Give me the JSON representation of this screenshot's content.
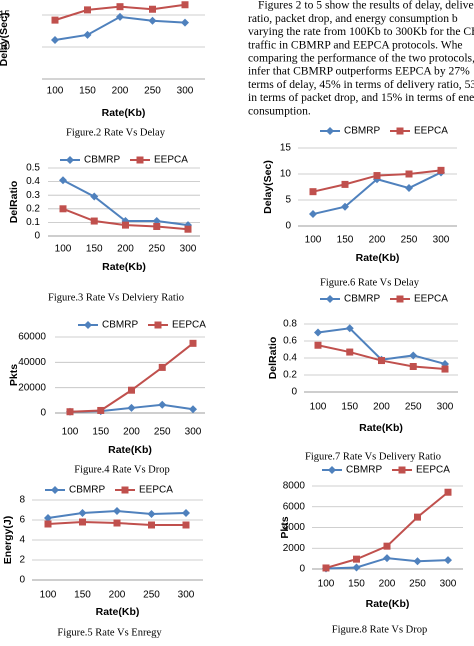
{
  "paragraph": [
    "Figures 2 to 5 show the results of delay, delive",
    "ratio, packet drop, and energy consumption b",
    "varying the rate from 100Kb to 300Kb for the CB",
    "traffic in CBMRP and EEPCA protocols. Whe",
    "comparing the performance of the two protocols, w",
    "infer that CBMRP outperforms EEPCA by 27%",
    "terms of delay, 45% in terms of delivery ratio, 53",
    "in terms of packet drop, and 15% in terms of energ",
    "consumption."
  ],
  "chart_data": [
    {
      "type": "line",
      "caption": "Figure.2 Rate Vs Delay",
      "ylabel": "Delay(Sec)",
      "xlabel": "Rate(Kb)",
      "categories": [
        "100",
        "150",
        "200",
        "250",
        "300"
      ],
      "series": [
        {
          "color": "#4f81bd",
          "values": [
            11.1,
            11.9,
            14.7,
            14.1,
            13.8
          ]
        },
        {
          "color": "#c0504d",
          "values": [
            14.2,
            15.8,
            16.3,
            15.9,
            16.6
          ]
        }
      ],
      "ylim": [
        5,
        20
      ],
      "yticks": [
        10,
        15
      ],
      "grid": true
    },
    {
      "type": "line",
      "caption": "Figure.3 Rate Vs Delviery Ratio",
      "ylabel": "DelRatio",
      "xlabel": "Rate(Kb)",
      "categories": [
        "100",
        "150",
        "200",
        "250",
        "300"
      ],
      "series": [
        {
          "name": "CBMRP",
          "color": "#4f81bd",
          "values": [
            0.41,
            0.29,
            0.11,
            0.11,
            0.08
          ]
        },
        {
          "name": "EEPCA",
          "color": "#c0504d",
          "values": [
            0.2,
            0.11,
            0.08,
            0.07,
            0.05
          ]
        }
      ],
      "ylim": [
        0,
        0.5
      ],
      "yticks": [
        0,
        0.1,
        0.2,
        0.3,
        0.4,
        0.5
      ],
      "grid": true,
      "legend": "top"
    },
    {
      "type": "line",
      "caption": "Figure.4 Rate Vs Drop",
      "ylabel": "Pkts",
      "xlabel": "Rate(Kb)",
      "categories": [
        "100",
        "150",
        "200",
        "250",
        "300"
      ],
      "series": [
        {
          "name": "CBMRP",
          "color": "#4f81bd",
          "values": [
            1000,
            1500,
            4000,
            6500,
            3000
          ]
        },
        {
          "name": "EEPCA",
          "color": "#c0504d",
          "values": [
            1000,
            2000,
            18000,
            36000,
            55000
          ]
        }
      ],
      "ylim": [
        0,
        60000
      ],
      "yticks": [
        0,
        20000,
        40000,
        60000
      ],
      "grid": true,
      "legend": "top"
    },
    {
      "type": "line",
      "caption": "Figure.5 Rate Vs Enregy",
      "ylabel": "Energy(J)",
      "xlabel": "Rate(Kb)",
      "categories": [
        "100",
        "150",
        "200",
        "250",
        "300"
      ],
      "series": [
        {
          "name": "CBMRP",
          "color": "#4f81bd",
          "values": [
            6.2,
            6.7,
            6.9,
            6.6,
            6.7
          ]
        },
        {
          "name": "EEPCA",
          "color": "#c0504d",
          "values": [
            5.6,
            5.8,
            5.7,
            5.5,
            5.5
          ]
        }
      ],
      "ylim": [
        0,
        8
      ],
      "yticks": [
        0,
        2,
        4,
        6,
        8
      ],
      "grid": true,
      "legend": "top"
    },
    {
      "type": "line",
      "caption": "Figure.6 Rate Vs Delay",
      "ylabel": "Delay(Sec)",
      "xlabel": "Rate(Kb)",
      "categories": [
        "100",
        "150",
        "200",
        "250",
        "300"
      ],
      "series": [
        {
          "name": "CBMRP",
          "color": "#4f81bd",
          "values": [
            2.3,
            3.7,
            9,
            7.3,
            10.3
          ]
        },
        {
          "name": "EEPCA",
          "color": "#c0504d",
          "values": [
            6.6,
            8,
            9.7,
            10,
            10.7
          ]
        }
      ],
      "ylim": [
        0,
        15
      ],
      "yticks": [
        0,
        5,
        10,
        15
      ],
      "grid": true,
      "legend": "top"
    },
    {
      "type": "line",
      "caption": "Figure.7 Rate Vs Delivery Ratio",
      "ylabel": "DelRatio",
      "xlabel": "Rate(Kb)",
      "categories": [
        "100",
        "150",
        "200",
        "250",
        "300"
      ],
      "series": [
        {
          "name": "CBMRP",
          "color": "#4f81bd",
          "values": [
            0.7,
            0.75,
            0.38,
            0.43,
            0.33
          ]
        },
        {
          "name": "EEPCA",
          "color": "#c0504d",
          "values": [
            0.55,
            0.47,
            0.37,
            0.3,
            0.27
          ]
        }
      ],
      "ylim": [
        0,
        0.8
      ],
      "yticks": [
        0,
        0.2,
        0.4,
        0.6,
        0.8
      ],
      "grid": true,
      "legend": "top"
    },
    {
      "type": "line",
      "caption": "Figure.8 Rate Vs Drop",
      "ylabel": "Pkts",
      "xlabel": "Rate(Kb)",
      "categories": [
        "100",
        "150",
        "200",
        "250",
        "300"
      ],
      "series": [
        {
          "name": "CBMRP",
          "color": "#4f81bd",
          "values": [
            50,
            150,
            1050,
            750,
            850
          ]
        },
        {
          "name": "EEPCA",
          "color": "#c0504d",
          "values": [
            100,
            950,
            2200,
            5000,
            7400
          ]
        }
      ],
      "ylim": [
        0,
        8000
      ],
      "yticks": [
        0,
        2000,
        4000,
        6000,
        8000
      ],
      "grid": true,
      "legend": "top"
    }
  ]
}
